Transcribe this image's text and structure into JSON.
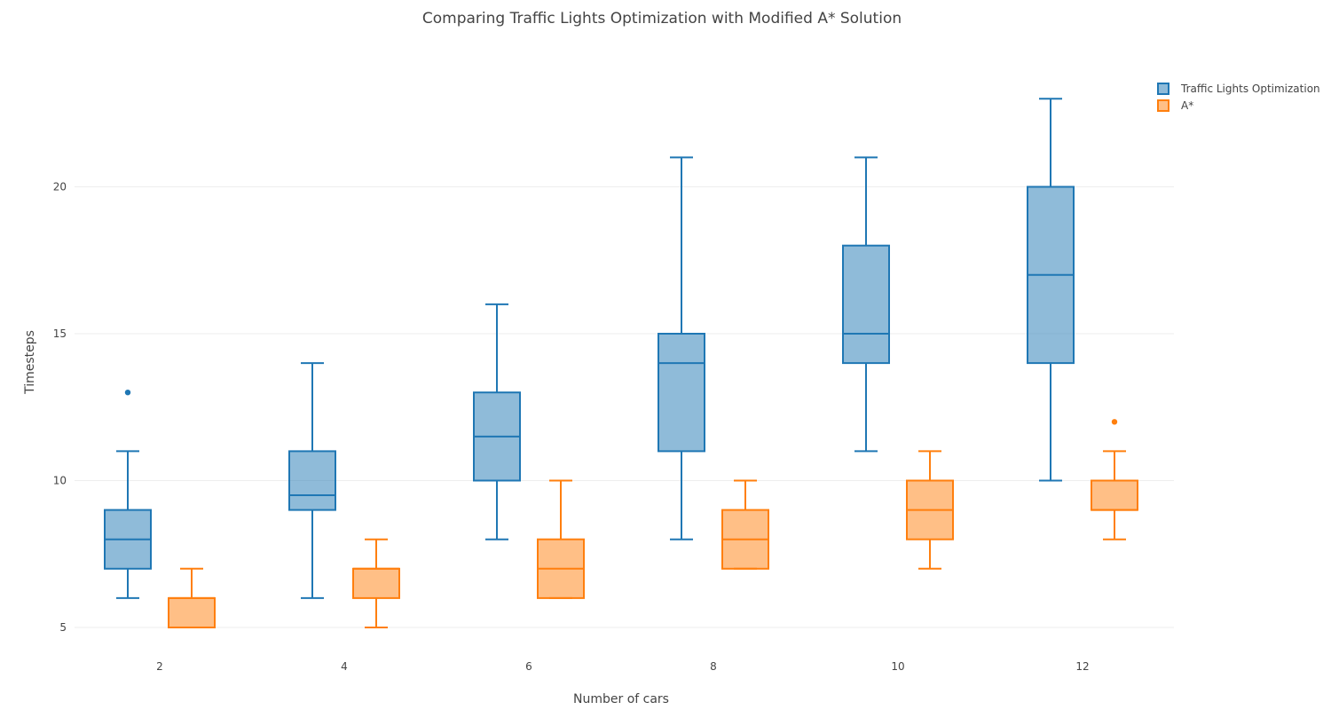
{
  "chart_data": {
    "type": "box",
    "title": "Comparing Traffic Lights Optimization with Modified A* Solution",
    "xlabel": "Number of cars",
    "ylabel": "Timesteps",
    "categories": [
      "2",
      "4",
      "6",
      "8",
      "10",
      "12"
    ],
    "ylim": [
      4,
      24.5
    ],
    "yticks": [
      5,
      10,
      15,
      20
    ],
    "grid": true,
    "legend_position": "top-right",
    "series": [
      {
        "name": "Traffic Lights Optimization",
        "color": "#1f77b4",
        "fill": "rgba(31,119,180,0.5)",
        "boxes": [
          {
            "category": "2",
            "min": 6,
            "q1": 7,
            "median": 8,
            "q3": 9,
            "max": 11,
            "outliers": [
              13
            ]
          },
          {
            "category": "4",
            "min": 6,
            "q1": 9,
            "median": 9.5,
            "q3": 11,
            "max": 14,
            "outliers": []
          },
          {
            "category": "6",
            "min": 8,
            "q1": 10,
            "median": 11.5,
            "q3": 13,
            "max": 16,
            "outliers": []
          },
          {
            "category": "8",
            "min": 8,
            "q1": 11,
            "median": 14,
            "q3": 15,
            "max": 21,
            "outliers": []
          },
          {
            "category": "10",
            "min": 11,
            "q1": 14,
            "median": 15,
            "q3": 18,
            "max": 21,
            "outliers": []
          },
          {
            "category": "12",
            "min": 10,
            "q1": 14,
            "median": 17,
            "q3": 20,
            "max": 23,
            "outliers": []
          }
        ]
      },
      {
        "name": "A*",
        "color": "#ff7f0e",
        "fill": "rgba(255,127,14,0.5)",
        "boxes": [
          {
            "category": "2",
            "min": 5,
            "q1": 5,
            "median": 6,
            "q3": 6,
            "max": 7,
            "outliers": []
          },
          {
            "category": "4",
            "min": 5,
            "q1": 6,
            "median": 7,
            "q3": 7,
            "max": 8,
            "outliers": []
          },
          {
            "category": "6",
            "min": 6,
            "q1": 6,
            "median": 7,
            "q3": 8,
            "max": 10,
            "outliers": []
          },
          {
            "category": "8",
            "min": 7,
            "q1": 7,
            "median": 8,
            "q3": 9,
            "max": 10,
            "outliers": []
          },
          {
            "category": "10",
            "min": 7,
            "q1": 8,
            "median": 9,
            "q3": 10,
            "max": 11,
            "outliers": []
          },
          {
            "category": "12",
            "min": 8,
            "q1": 9,
            "median": 9,
            "q3": 10,
            "max": 11,
            "outliers": [
              12
            ]
          }
        ]
      }
    ]
  }
}
